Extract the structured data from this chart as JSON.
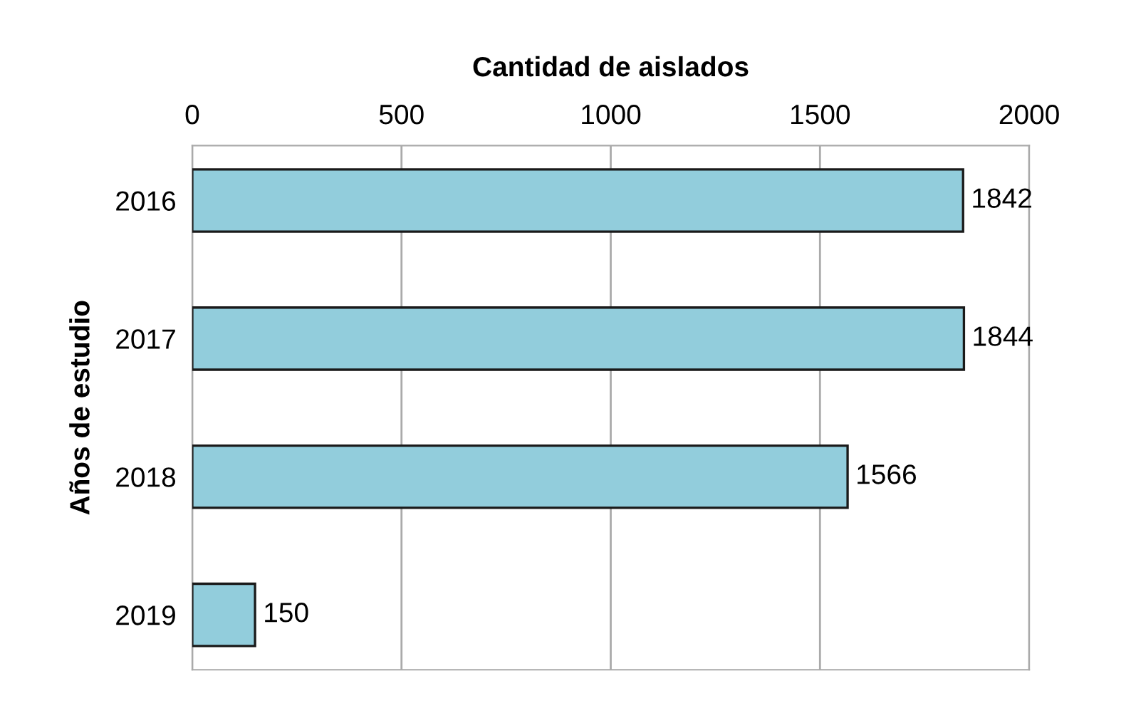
{
  "chart_data": {
    "type": "bar",
    "orientation": "horizontal",
    "xlabel": "Cantidad de aislados",
    "ylabel": "Años de estudio",
    "categories": [
      "2016",
      "2017",
      "2018",
      "2019"
    ],
    "values": [
      1842,
      1844,
      1566,
      150
    ],
    "color": "#92cddc",
    "xlim": [
      0,
      2000
    ],
    "xticks": [
      0,
      500,
      1000,
      1500,
      2000
    ],
    "grid": "x",
    "data_labels": true
  }
}
